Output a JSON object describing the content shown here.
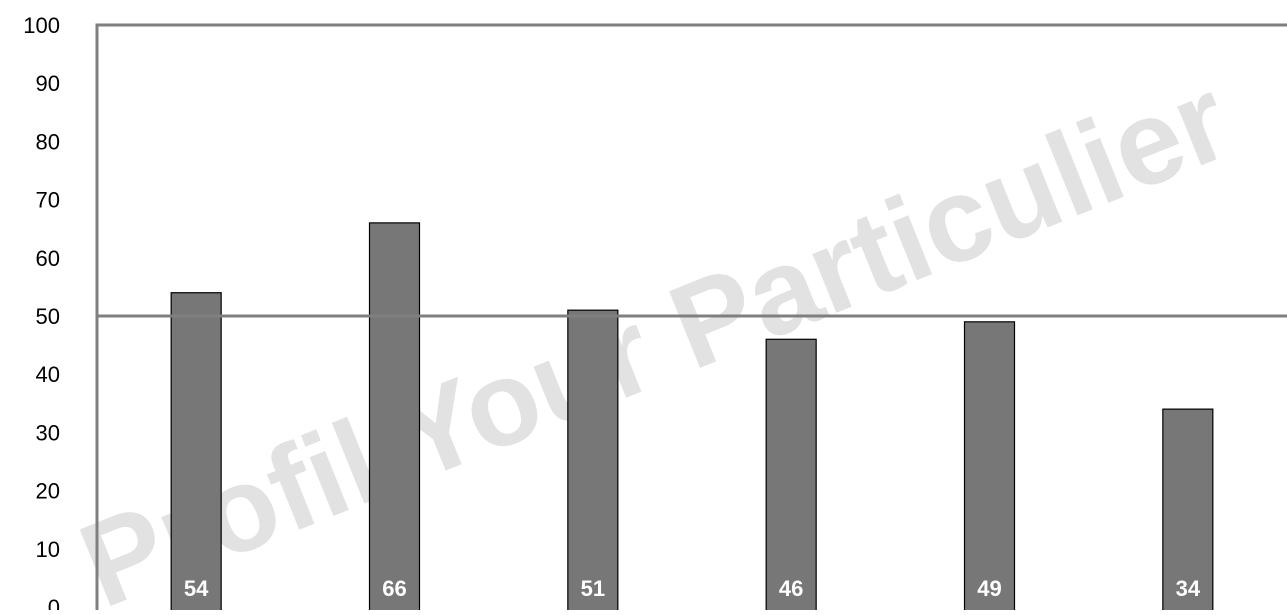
{
  "chart_data": {
    "type": "bar",
    "categories": [
      "",
      "",
      "",
      "",
      "",
      ""
    ],
    "values": [
      54,
      66,
      51,
      46,
      49,
      34
    ],
    "data_labels": [
      "54",
      "66",
      "51",
      "46",
      "49",
      "34"
    ],
    "ylim": [
      0,
      100
    ],
    "yticks": [
      0,
      10,
      20,
      30,
      40,
      50,
      60,
      70,
      80,
      90,
      100
    ],
    "ytick_labels": [
      "0",
      "10",
      "20",
      "30",
      "40",
      "50",
      "60",
      "70",
      "80",
      "90",
      "100"
    ],
    "reference_line": 50,
    "watermark": "Profil Your Particulier",
    "colors": {
      "bar": "#777777",
      "bar_border": "#000000",
      "axis": "#7f7f7f",
      "data_label": "#ffffff",
      "watermark": "#d9d9d9"
    },
    "grid": false,
    "legend": "none"
  }
}
